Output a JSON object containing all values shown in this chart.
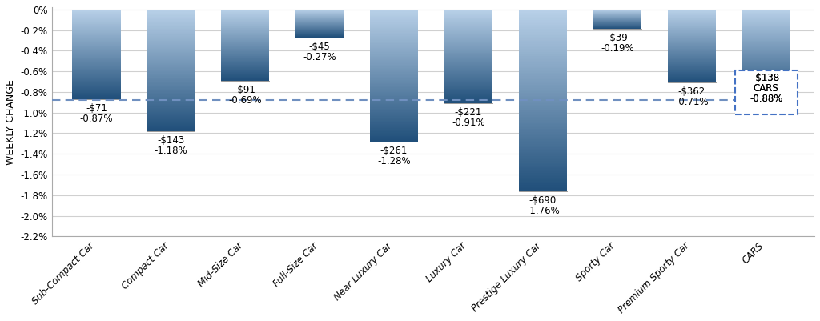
{
  "categories": [
    "Sub-Compact Car",
    "Compact Car",
    "Mid-Size Car",
    "Full-Size Car",
    "Near Luxury Car",
    "Luxury Car",
    "Prestige Luxury Car",
    "Sporty Car",
    "Premium Sporty Car",
    "CARS"
  ],
  "values": [
    -0.87,
    -1.18,
    -0.69,
    -0.27,
    -1.28,
    -0.91,
    -1.76,
    -0.19,
    -0.71,
    -0.88
  ],
  "dollar_labels": [
    "-$71",
    "-$143",
    "-$91",
    "-$45",
    "-$261",
    "-$221",
    "-$690",
    "-$39",
    "-$362",
    "-$138"
  ],
  "pct_labels": [
    "-0.87%",
    "-1.18%",
    "-0.69%",
    "-0.27%",
    "-1.28%",
    "-0.91%",
    "-1.76%",
    "-0.19%",
    "-0.71%",
    "-0.88%"
  ],
  "reference_line": -0.88,
  "ylim": [
    -2.2,
    0.0
  ],
  "yticks": [
    0.0,
    -0.2,
    -0.4,
    -0.6,
    -0.8,
    -1.0,
    -1.2,
    -1.4,
    -1.6,
    -1.8,
    -2.0,
    -2.2
  ],
  "ytick_labels": [
    "0%",
    "-0.2%",
    "-0.4%",
    "-0.6%",
    "-0.8%",
    "-1.0%",
    "-1.2%",
    "-1.4%",
    "-1.6%",
    "-1.8%",
    "-2.0%",
    "-2.2%"
  ],
  "ylabel": "WEEKLY CHANGE",
  "bar_top_color": "#b8d0e8",
  "bar_bottom_color": "#1f4e79",
  "cars_box_color": "#4472c4",
  "dashed_line_color": "#7090c0",
  "background_color": "#ffffff",
  "grid_color": "#d0d0d0",
  "label_fontsize": 8.5,
  "ylabel_fontsize": 9,
  "tick_fontsize": 8.5,
  "figsize": [
    10.24,
    4.01
  ],
  "dpi": 100
}
